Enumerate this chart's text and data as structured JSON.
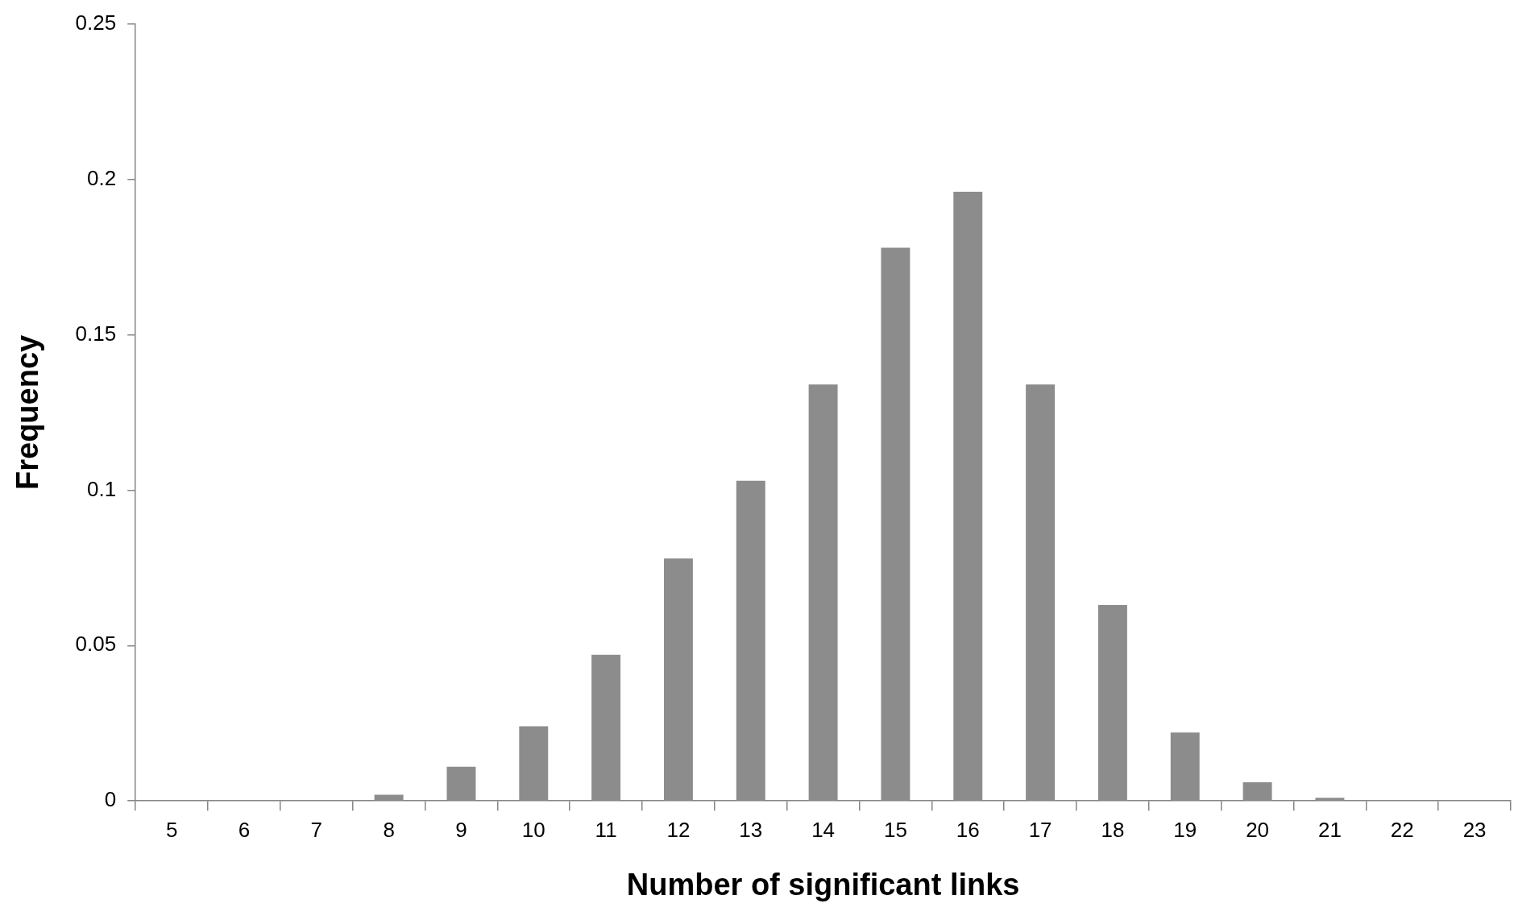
{
  "chart_data": {
    "type": "bar",
    "xlabel": "Number of significant links",
    "ylabel": "Frequency",
    "categories": [
      "5",
      "6",
      "7",
      "8",
      "9",
      "10",
      "11",
      "12",
      "13",
      "14",
      "15",
      "16",
      "17",
      "18",
      "19",
      "20",
      "21",
      "22",
      "23"
    ],
    "values": [
      0,
      0,
      0,
      0.002,
      0.011,
      0.024,
      0.047,
      0.078,
      0.103,
      0.134,
      0.178,
      0.196,
      0.134,
      0.063,
      0.022,
      0.006,
      0.001,
      0,
      0
    ],
    "color": "#8c8c8c",
    "ylim": [
      0,
      0.25
    ],
    "yticks": [
      0,
      0.05,
      0.1,
      0.15,
      0.2,
      0.25
    ],
    "grid": false,
    "legend": false
  }
}
